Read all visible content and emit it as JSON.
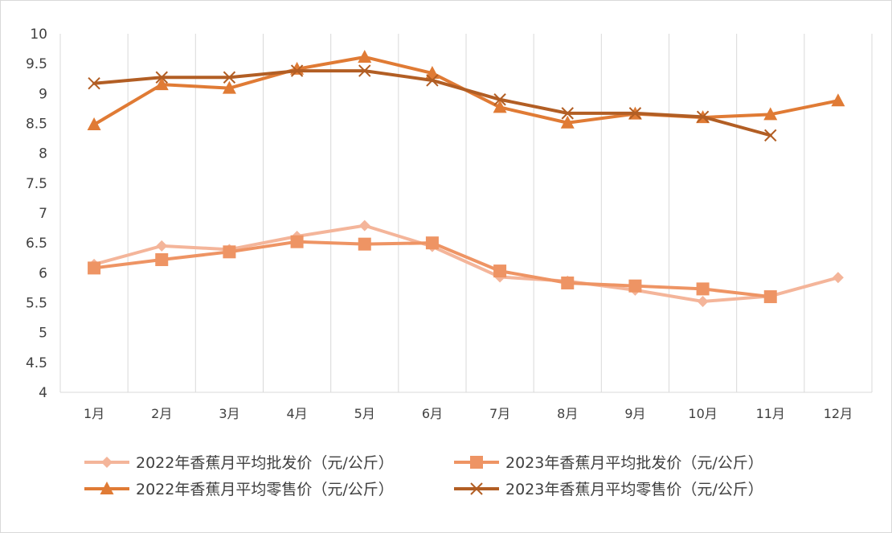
{
  "chart_data": {
    "type": "line",
    "categories": [
      "1月",
      "2月",
      "3月",
      "4月",
      "5月",
      "6月",
      "7月",
      "8月",
      "9月",
      "10月",
      "11月",
      "12月"
    ],
    "ylim": [
      4,
      10
    ],
    "yticks": [
      "4",
      "4.5",
      "5",
      "5.5",
      "6",
      "6.5",
      "7",
      "7.5",
      "8",
      "8.5",
      "9",
      "9.5",
      "10"
    ],
    "grid": "vertical",
    "legend_position": "bottom",
    "series": [
      {
        "name": "2022年香蕉月平均批发价（元/公斤）",
        "marker": "diamond",
        "color": "#F4B59A",
        "values": [
          6.14,
          6.45,
          6.39,
          6.61,
          6.79,
          6.44,
          5.93,
          5.86,
          5.71,
          5.52,
          5.61,
          5.92
        ]
      },
      {
        "name": "2023年香蕉月平均批发价（元/公斤）",
        "marker": "square",
        "color": "#EE9464",
        "values": [
          6.08,
          6.22,
          6.35,
          6.52,
          6.48,
          6.5,
          6.03,
          5.83,
          5.78,
          5.73,
          5.6,
          null
        ]
      },
      {
        "name": "2022年香蕉月平均零售价（元/公斤）",
        "marker": "triangle",
        "color": "#E07B35",
        "values": [
          8.48,
          9.15,
          9.09,
          9.41,
          9.61,
          9.34,
          8.77,
          8.51,
          8.66,
          8.6,
          8.65,
          8.88
        ]
      },
      {
        "name": "2023年香蕉月平均零售价（元/公斤）",
        "marker": "x",
        "color": "#B25E24",
        "values": [
          9.17,
          9.27,
          9.27,
          9.38,
          9.38,
          9.22,
          8.9,
          8.67,
          8.67,
          8.61,
          8.3,
          null
        ]
      }
    ]
  }
}
